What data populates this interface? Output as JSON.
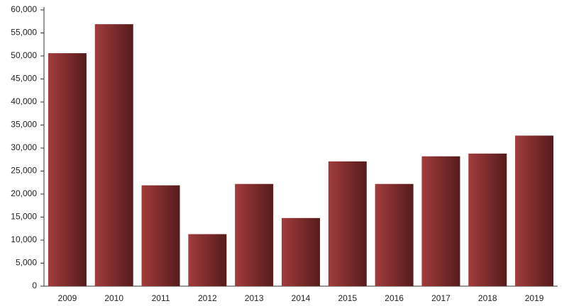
{
  "chart_data": {
    "type": "bar",
    "categories": [
      "2009",
      "2010",
      "2011",
      "2012",
      "2013",
      "2014",
      "2015",
      "2016",
      "2017",
      "2018",
      "2019"
    ],
    "values": [
      50600,
      56900,
      21900,
      11300,
      22200,
      14800,
      27100,
      22200,
      28200,
      28800,
      32700
    ],
    "gradient": [
      "#a23c3c",
      "#561b1b"
    ],
    "ylim": [
      0,
      60000
    ],
    "yticks": [
      0,
      {
        "value": 5000,
        "label": "5,000"
      },
      {
        "value": 10000,
        "label": "10,000"
      },
      {
        "value": 15000,
        "label": "15,000"
      },
      {
        "value": 20000,
        "label": "20,000"
      },
      {
        "value": 25000,
        "label": "25,000"
      },
      {
        "value": 30000,
        "label": "30,000"
      },
      {
        "value": 35000,
        "label": "35,000"
      },
      {
        "value": 40000,
        "label": "40,000"
      },
      {
        "value": 45000,
        "label": "45,000"
      },
      {
        "value": 50000,
        "label": "50,000"
      },
      {
        "value": 55000,
        "label": "55,000"
      },
      {
        "value": 60000,
        "label": "60,000"
      }
    ],
    "grid": false
  }
}
